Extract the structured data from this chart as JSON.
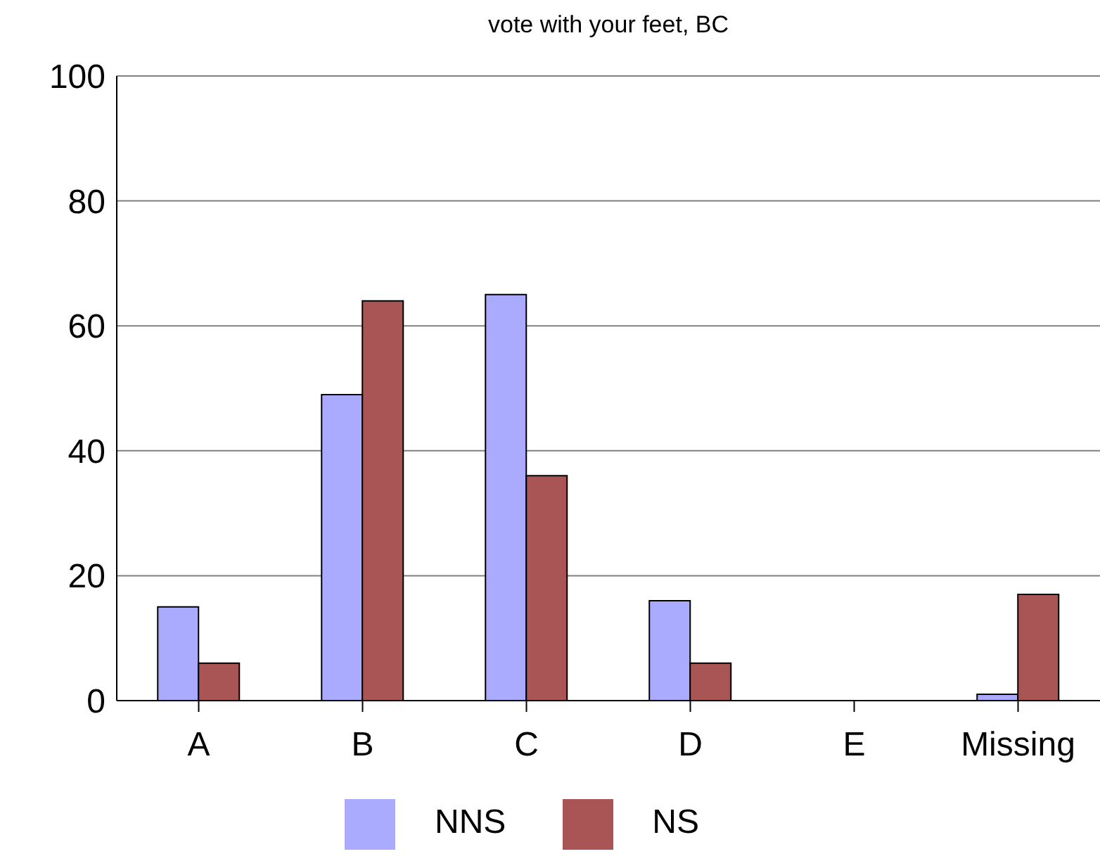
{
  "chart_data": {
    "type": "bar",
    "title": "vote with your feet, BC",
    "categories": [
      "A",
      "B",
      "C",
      "D",
      "E",
      "Missing"
    ],
    "series": [
      {
        "name": "NNS",
        "color": "#aaaaff",
        "values": [
          15,
          49,
          65,
          16,
          0,
          1
        ]
      },
      {
        "name": "NS",
        "color": "#aa5555",
        "values": [
          6,
          64,
          36,
          6,
          0,
          17
        ]
      }
    ],
    "ylim": [
      0,
      100
    ],
    "yticks": [
      0,
      20,
      40,
      60,
      80,
      100
    ],
    "grid": "y",
    "legend": "bottom"
  }
}
